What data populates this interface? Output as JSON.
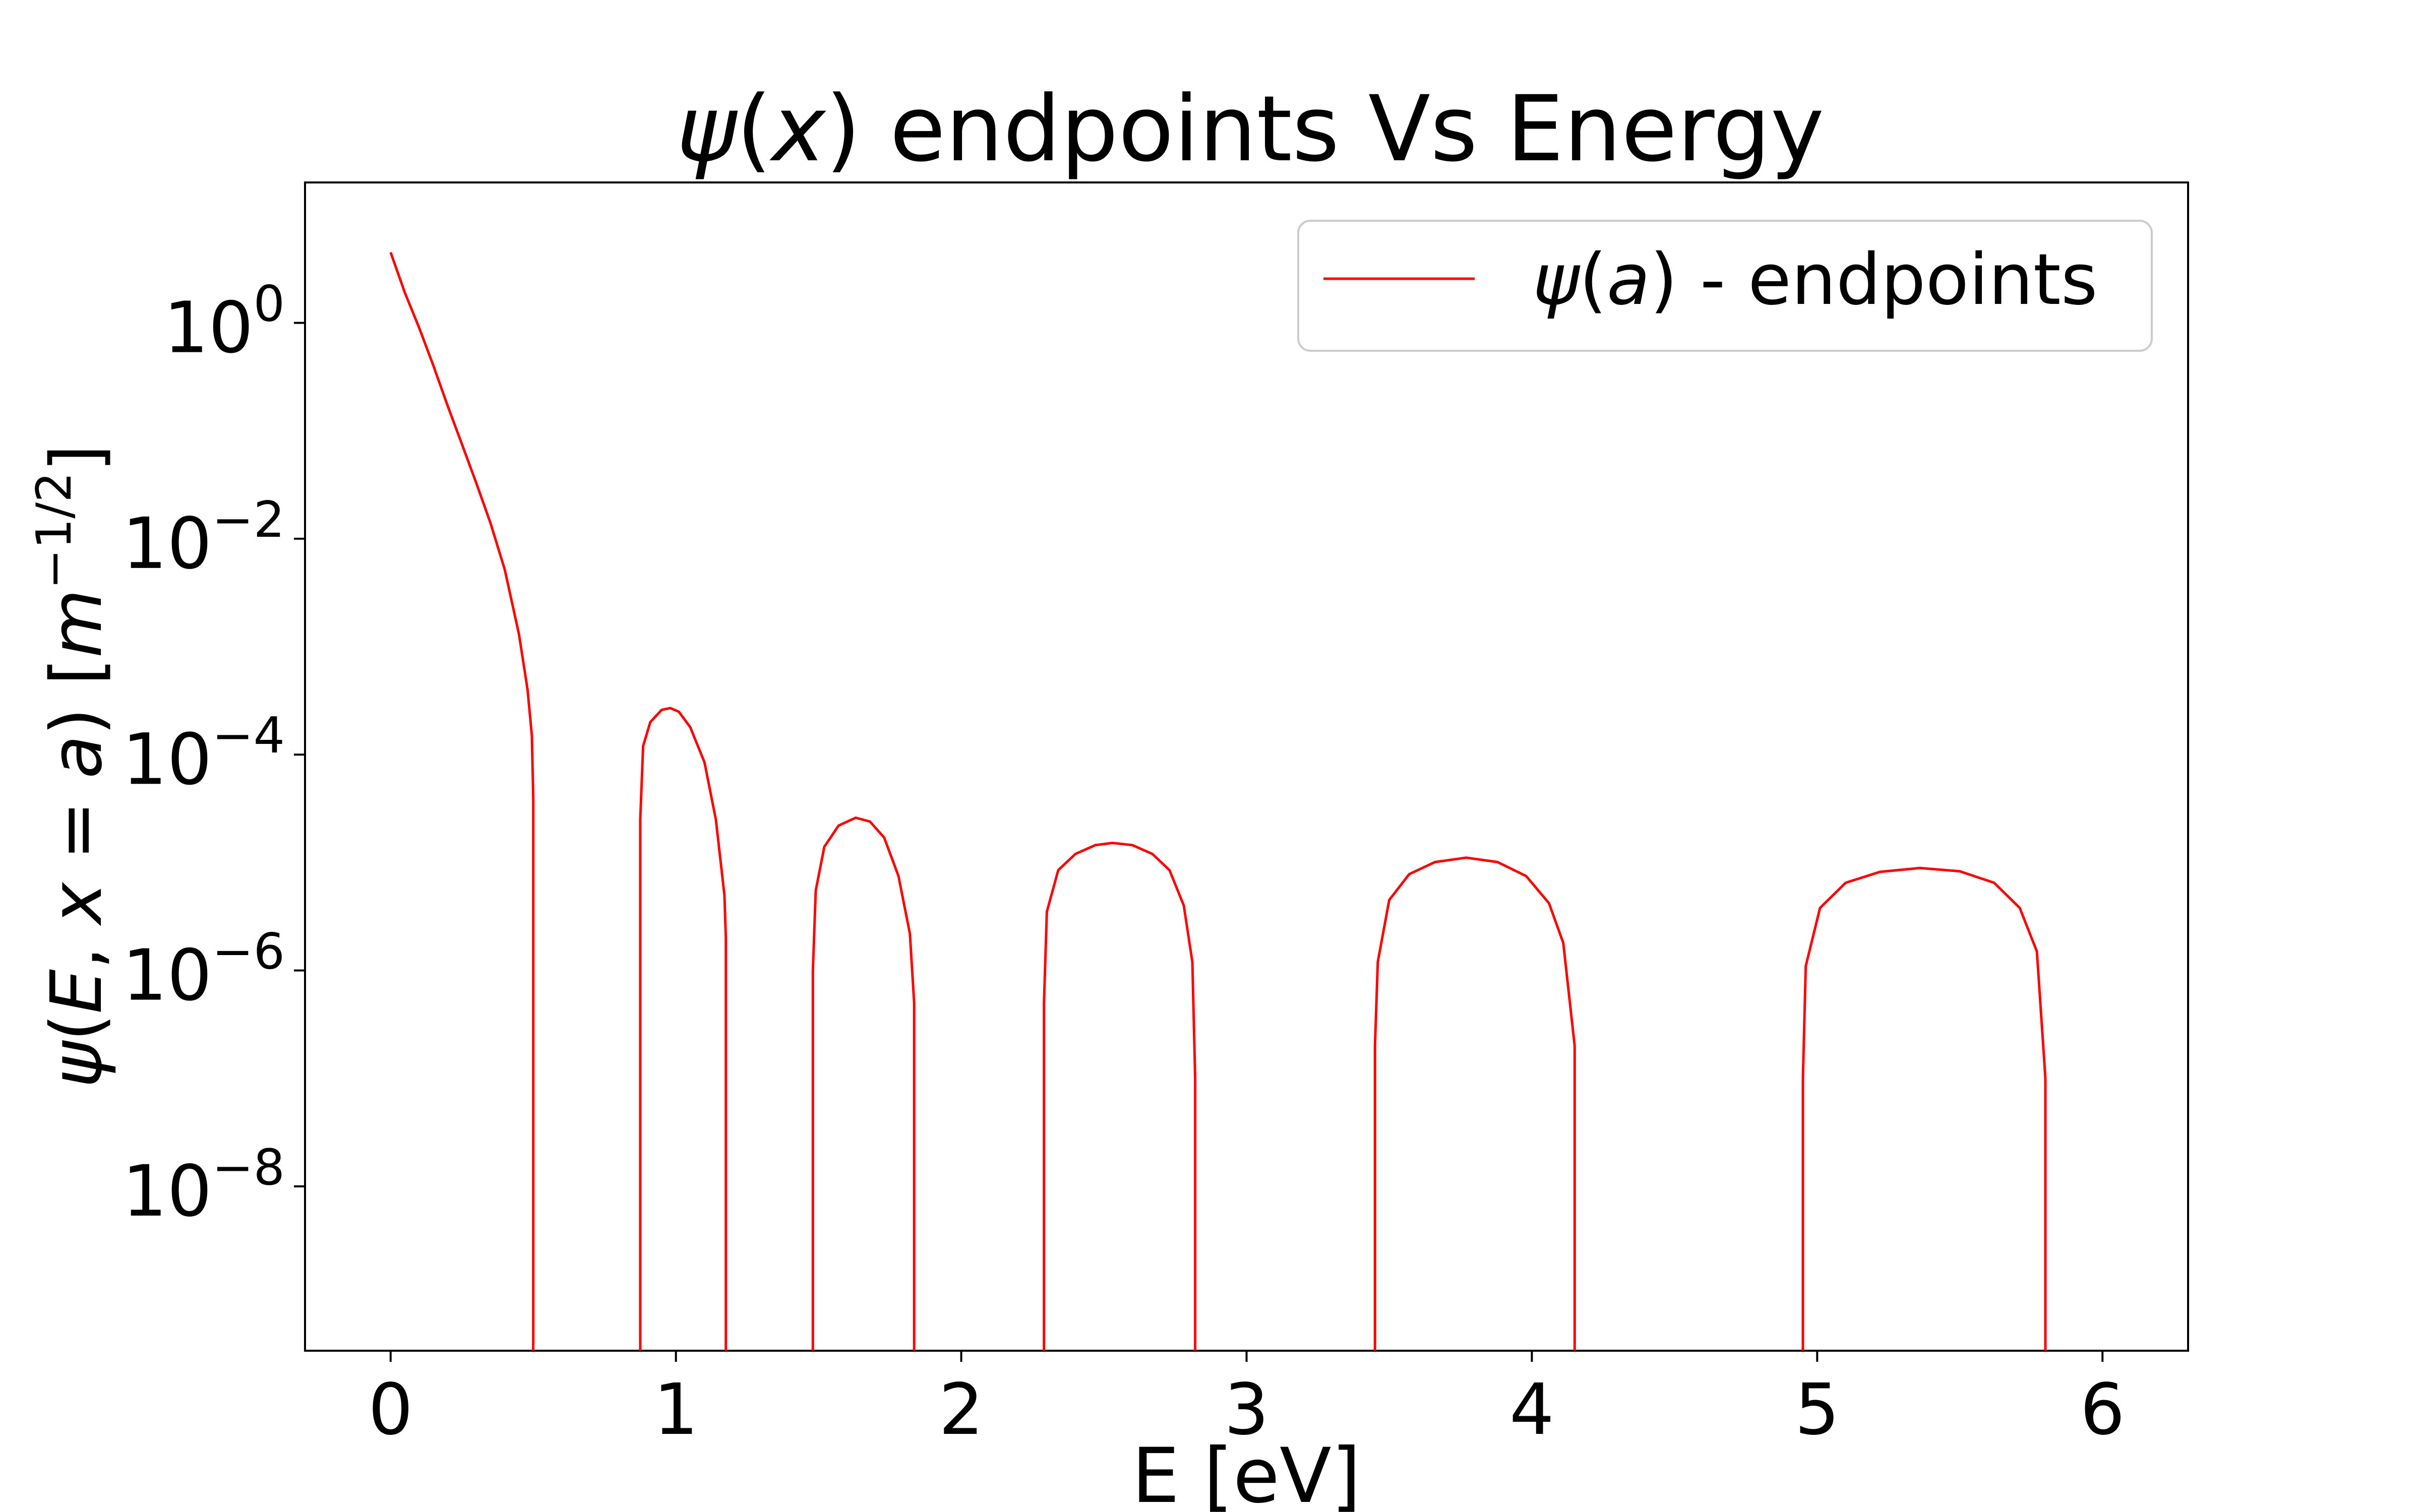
{
  "chart_data": {
    "type": "line",
    "title_symbol": "ψ",
    "title_var": "x",
    "title_rest": " endpoints Vs Energy",
    "xlabel": "E [eV]",
    "ylabel_psi": "ψ",
    "ylabel_E": "E",
    "ylabel_x": "x",
    "ylabel_a": "a",
    "ylabel_unit_m": "m",
    "ylabel_unit_exp": "−1/2",
    "x_ticks": [
      "0",
      "1",
      "2",
      "3",
      "4",
      "5",
      "6"
    ],
    "y_ticks": [
      {
        "base": "10",
        "exp": "0",
        "value": 1
      },
      {
        "base": "10",
        "exp": "−2",
        "value": 0.01
      },
      {
        "base": "10",
        "exp": "−4",
        "value": 0.0001
      },
      {
        "base": "10",
        "exp": "−6",
        "value": 1e-06
      },
      {
        "base": "10",
        "exp": "−8",
        "value": 1e-08
      }
    ],
    "xlim": [
      -0.3,
      6.3
    ],
    "ylim": [
      3e-10,
      20
    ],
    "yscale": "log",
    "grid": false,
    "legend_position": "top-right",
    "legend": {
      "psi": "ψ",
      "a": "a",
      "rest": " - endpoints"
    },
    "series": [
      {
        "color": "#ff0000",
        "x": [
          0,
          0.05,
          0.1,
          0.15,
          0.2,
          0.25,
          0.3,
          0.35,
          0.4,
          0.45,
          0.48,
          0.495,
          0.5,
          0.5
        ],
        "y": [
          4.5,
          1.9,
          0.9,
          0.4,
          0.17,
          0.075,
          0.033,
          0.014,
          0.0052,
          0.0013,
          0.0004,
          0.00015,
          4e-05,
          3e-10
        ]
      },
      {
        "color": "#ff0000",
        "x": [
          0.875,
          0.875,
          0.885,
          0.91,
          0.95,
          0.98,
          1.01,
          1.05,
          1.1,
          1.14,
          1.17,
          1.175,
          1.175
        ],
        "y": [
          3e-10,
          2.5e-05,
          0.00012,
          0.0002,
          0.00026,
          0.00027,
          0.00025,
          0.00018,
          8.5e-05,
          2.5e-05,
          5e-06,
          2e-06,
          3e-10
        ]
      },
      {
        "color": "#ff0000",
        "x": [
          1.48,
          1.48,
          1.49,
          1.52,
          1.57,
          1.63,
          1.68,
          1.73,
          1.78,
          1.82,
          1.835,
          1.835
        ],
        "y": [
          3e-10,
          1e-06,
          5.5e-06,
          1.4e-05,
          2.2e-05,
          2.6e-05,
          2.4e-05,
          1.7e-05,
          7.5e-06,
          2.2e-06,
          5e-07,
          3e-10
        ]
      },
      {
        "color": "#ff0000",
        "x": [
          2.29,
          2.29,
          2.3,
          2.34,
          2.4,
          2.47,
          2.53,
          2.6,
          2.67,
          2.73,
          2.78,
          2.81,
          2.82,
          2.82
        ],
        "y": [
          3e-10,
          5e-07,
          3.5e-06,
          8.5e-06,
          1.2e-05,
          1.45e-05,
          1.52e-05,
          1.45e-05,
          1.2e-05,
          8.5e-06,
          4e-06,
          1.2e-06,
          1e-07,
          3e-10
        ]
      },
      {
        "color": "#ff0000",
        "x": [
          3.45,
          3.45,
          3.46,
          3.5,
          3.57,
          3.66,
          3.77,
          3.88,
          3.98,
          4.06,
          4.11,
          4.15,
          4.15
        ],
        "y": [
          3e-10,
          2e-07,
          1.2e-06,
          4.5e-06,
          7.8e-06,
          1.01e-05,
          1.11e-05,
          1.01e-05,
          7.5e-06,
          4.2e-06,
          1.8e-06,
          2e-07,
          3e-10
        ]
      },
      {
        "color": "#ff0000",
        "x": [
          4.95,
          4.95,
          4.96,
          5.01,
          5.1,
          5.22,
          5.36,
          5.5,
          5.62,
          5.71,
          5.77,
          5.8,
          5.8
        ],
        "y": [
          3e-10,
          1e-07,
          1.1e-06,
          3.8e-06,
          6.5e-06,
          8.2e-06,
          8.9e-06,
          8.3e-06,
          6.5e-06,
          3.8e-06,
          1.5e-06,
          1e-07,
          3e-10
        ]
      }
    ]
  }
}
